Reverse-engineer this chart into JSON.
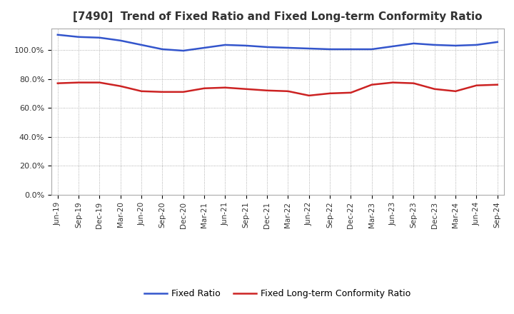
{
  "title": "[7490]  Trend of Fixed Ratio and Fixed Long-term Conformity Ratio",
  "xlabels": [
    "Jun-19",
    "Sep-19",
    "Dec-19",
    "Mar-20",
    "Jun-20",
    "Sep-20",
    "Dec-20",
    "Mar-21",
    "Jun-21",
    "Sep-21",
    "Dec-21",
    "Mar-22",
    "Jun-22",
    "Sep-22",
    "Dec-22",
    "Mar-23",
    "Jun-23",
    "Sep-23",
    "Dec-23",
    "Mar-24",
    "Jun-24",
    "Sep-24"
  ],
  "fixed_ratio": [
    110.5,
    109.0,
    108.5,
    106.5,
    103.5,
    100.5,
    99.5,
    101.5,
    103.5,
    103.0,
    102.0,
    101.5,
    101.0,
    100.5,
    100.5,
    100.5,
    102.5,
    104.5,
    103.5,
    103.0,
    103.5,
    105.5
  ],
  "fixed_lt_ratio": [
    77.0,
    77.5,
    77.5,
    75.0,
    71.5,
    71.0,
    71.0,
    73.5,
    74.0,
    73.0,
    72.0,
    71.5,
    68.5,
    70.0,
    70.5,
    76.0,
    77.5,
    77.0,
    73.0,
    71.5,
    75.5,
    76.0
  ],
  "ylim": [
    0,
    115
  ],
  "yticks": [
    0,
    20,
    40,
    60,
    80,
    100
  ],
  "ytick_labels": [
    "0.0%",
    "20.0%",
    "40.0%",
    "60.0%",
    "80.0%",
    "100.0%"
  ],
  "line1_color": "#3355cc",
  "line2_color": "#cc2222",
  "background_color": "#ffffff",
  "grid_color": "#999999",
  "legend_labels": [
    "Fixed Ratio",
    "Fixed Long-term Conformity Ratio"
  ],
  "title_color": "#333333",
  "title_fontsize": 11
}
